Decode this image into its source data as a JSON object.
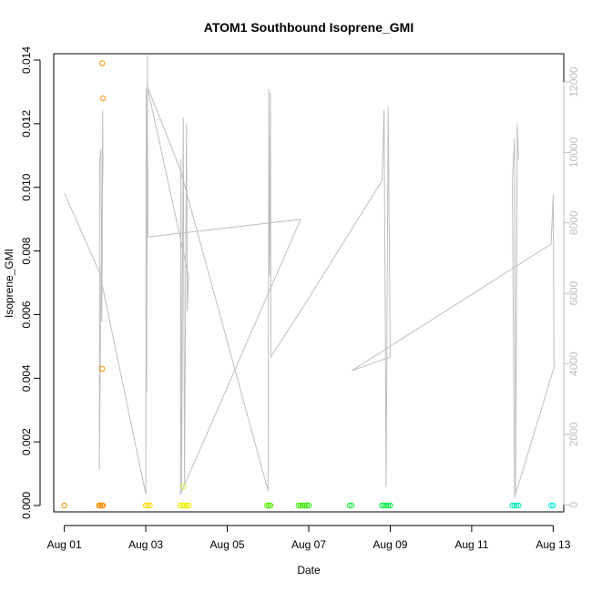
{
  "chart_data": {
    "type": "scatter",
    "title": "ATOM1 Southbound Isoprene_GMI",
    "xlabel": "Date",
    "ylabel": "Isoprene_GMI",
    "x_ticks": [
      "Aug 01",
      "Aug 03",
      "Aug 05",
      "Aug 07",
      "Aug 09",
      "Aug 11",
      "Aug 13"
    ],
    "x_tick_days": [
      1,
      3,
      5,
      7,
      9,
      11,
      13
    ],
    "xlim_days": [
      0.74,
      13.26
    ],
    "y_ticks": [
      "0.000",
      "0.002",
      "0.004",
      "0.006",
      "0.008",
      "0.010",
      "0.012",
      "0.014"
    ],
    "ylim": [
      -0.0002,
      0.0142
    ],
    "y2_ticks": [
      "0",
      "2000",
      "4000",
      "6000",
      "8000",
      "10000",
      "12000"
    ],
    "y2lim": [
      -200,
      12800
    ],
    "grid": false,
    "series": [
      {
        "kind": "points",
        "points": [
          {
            "x": 1.0,
            "y": 0.0,
            "color": "#ff8c00"
          },
          {
            "x": 1.85,
            "y": 0.0,
            "color": "#ff8c00"
          },
          {
            "x": 1.88,
            "y": 0.0,
            "color": "#ff8c00"
          },
          {
            "x": 1.92,
            "y": 0.0,
            "color": "#ff8c00"
          },
          {
            "x": 1.95,
            "y": 0.0,
            "color": "#ff8c00"
          },
          {
            "x": 1.93,
            "y": 0.0139,
            "color": "#ff8c00"
          },
          {
            "x": 1.95,
            "y": 0.0128,
            "color": "#ff8c00"
          },
          {
            "x": 1.93,
            "y": 0.0043,
            "color": "#ff8c00"
          },
          {
            "x": 3.0,
            "y": 0.0,
            "color": "#ffd700"
          },
          {
            "x": 3.05,
            "y": 0.0,
            "color": "#ffd700"
          },
          {
            "x": 3.1,
            "y": 0.0,
            "color": "#ffd700"
          },
          {
            "x": 3.85,
            "y": 0.0,
            "color": "#f0f000"
          },
          {
            "x": 3.9,
            "y": 0.0,
            "color": "#f0f000"
          },
          {
            "x": 3.95,
            "y": 0.0,
            "color": "#f0f000"
          },
          {
            "x": 4.0,
            "y": 0.0,
            "color": "#f0f000"
          },
          {
            "x": 4.05,
            "y": 0.0,
            "color": "#f0f000"
          },
          {
            "x": 3.93,
            "y": 0.0006,
            "color": "#ccff44"
          },
          {
            "x": 5.98,
            "y": 0.0,
            "color": "#55ee00"
          },
          {
            "x": 6.02,
            "y": 0.0,
            "color": "#55ee00"
          },
          {
            "x": 6.06,
            "y": 0.0,
            "color": "#55ee00"
          },
          {
            "x": 6.75,
            "y": 0.0,
            "color": "#33ee00"
          },
          {
            "x": 6.8,
            "y": 0.0,
            "color": "#33ee00"
          },
          {
            "x": 6.85,
            "y": 0.0,
            "color": "#33ee00"
          },
          {
            "x": 6.9,
            "y": 0.0,
            "color": "#33ee00"
          },
          {
            "x": 6.95,
            "y": 0.0,
            "color": "#33ee00"
          },
          {
            "x": 7.0,
            "y": 0.0,
            "color": "#33ee00"
          },
          {
            "x": 8.0,
            "y": 0.0,
            "color": "#22ee44"
          },
          {
            "x": 8.05,
            "y": 0.0,
            "color": "#22ee44"
          },
          {
            "x": 8.8,
            "y": 0.0,
            "color": "#00ee44"
          },
          {
            "x": 8.85,
            "y": 0.0,
            "color": "#00ee44"
          },
          {
            "x": 8.9,
            "y": 0.0,
            "color": "#00ee44"
          },
          {
            "x": 8.95,
            "y": 0.0,
            "color": "#00ee44"
          },
          {
            "x": 9.0,
            "y": 0.0,
            "color": "#00ee44"
          },
          {
            "x": 12.0,
            "y": 0.0,
            "color": "#00eebb"
          },
          {
            "x": 12.05,
            "y": 0.0,
            "color": "#00eebb"
          },
          {
            "x": 12.1,
            "y": 0.0,
            "color": "#00eebb"
          },
          {
            "x": 12.15,
            "y": 0.0,
            "color": "#00eebb"
          },
          {
            "x": 12.95,
            "y": 0.0,
            "color": "#00eedd"
          },
          {
            "x": 13.0,
            "y": 0.0,
            "color": "#00eedd"
          }
        ]
      },
      {
        "kind": "line",
        "axis": "right",
        "color": "#bebebe",
        "points": [
          [
            1.0,
            8850
          ],
          [
            1.9,
            6500
          ],
          [
            1.86,
            1000
          ],
          [
            1.87,
            9800
          ],
          [
            1.9,
            10100
          ],
          [
            1.92,
            5200
          ],
          [
            1.93,
            6800
          ],
          [
            1.94,
            11200
          ],
          [
            1.95,
            9800
          ],
          [
            1.9,
            6400
          ],
          [
            3.0,
            300
          ],
          [
            3.01,
            11800
          ],
          [
            3.02,
            3200
          ],
          [
            3.04,
            12800
          ],
          [
            3.05,
            7600
          ],
          [
            6.8,
            8100
          ],
          [
            3.85,
            300
          ],
          [
            3.86,
            9800
          ],
          [
            3.88,
            400
          ],
          [
            3.92,
            11000
          ],
          [
            3.95,
            600
          ],
          [
            4.0,
            10800
          ],
          [
            4.02,
            5500
          ],
          [
            4.05,
            6500
          ],
          [
            3.03,
            11900
          ],
          [
            3.85,
            9500
          ],
          [
            6.0,
            400
          ],
          [
            6.02,
            11800
          ],
          [
            6.04,
            6500
          ],
          [
            6.06,
            11700
          ],
          [
            6.07,
            4200
          ],
          [
            6.8,
            5500
          ],
          [
            8.8,
            9200
          ],
          [
            8.85,
            11200
          ],
          [
            8.9,
            500
          ],
          [
            8.95,
            11300
          ],
          [
            9.0,
            4200
          ],
          [
            8.05,
            3800
          ],
          [
            12.95,
            7400
          ],
          [
            13.0,
            8800
          ],
          [
            13.02,
            3900
          ],
          [
            12.05,
            200
          ],
          [
            12.0,
            9200
          ],
          [
            12.05,
            10400
          ],
          [
            12.08,
            300
          ],
          [
            12.12,
            10800
          ],
          [
            12.15,
            9800
          ]
        ]
      }
    ]
  }
}
